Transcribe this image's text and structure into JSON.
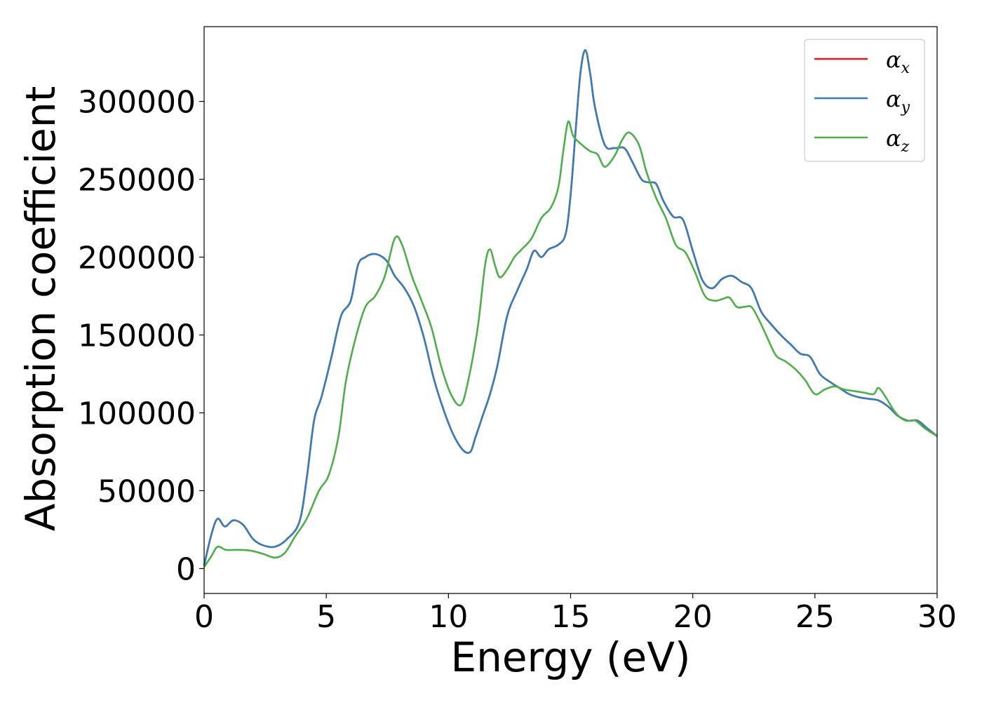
{
  "chart_data": {
    "type": "line",
    "title": "",
    "xlabel": "Energy (eV)",
    "ylabel": "Absorption coefficient",
    "xlim": [
      0,
      30
    ],
    "ylim": [
      -16000,
      348000
    ],
    "xticks": [
      0,
      5,
      10,
      15,
      20,
      25,
      30
    ],
    "xtick_labels": [
      "0",
      "5",
      "10",
      "15",
      "20",
      "25",
      "30"
    ],
    "yticks": [
      0,
      50000,
      100000,
      150000,
      200000,
      250000,
      300000
    ],
    "ytick_labels": [
      "0",
      "50000",
      "100000",
      "150000",
      "200000",
      "250000",
      "300000"
    ],
    "grid": false,
    "legend_position": "top-right",
    "series": [
      {
        "name": "αx",
        "legend_base": "α",
        "legend_sub": "x",
        "color": "#e41a1c",
        "x": [
          0,
          0.3,
          0.55,
          0.85,
          1.2,
          1.6,
          2.0,
          2.4,
          2.9,
          3.4,
          3.9,
          4.2,
          4.5,
          4.8,
          5.2,
          5.6,
          6.0,
          6.3,
          6.6,
          6.9,
          7.2,
          7.5,
          7.8,
          8.2,
          8.6,
          9.0,
          9.4,
          9.8,
          10.2,
          10.6,
          10.9,
          11.1,
          11.4,
          11.7,
          12.0,
          12.4,
          12.8,
          13.2,
          13.5,
          13.8,
          14.1,
          14.5,
          14.8,
          15.0,
          15.2,
          15.4,
          15.6,
          15.8,
          16.0,
          16.4,
          16.8,
          17.2,
          17.5,
          17.9,
          18.2,
          18.5,
          18.8,
          19.2,
          19.6,
          20.0,
          20.4,
          20.8,
          21.2,
          21.6,
          22.0,
          22.4,
          22.8,
          23.2,
          23.6,
          24.0,
          24.4,
          24.8,
          25.2,
          25.6,
          26.0,
          26.4,
          26.8,
          27.2,
          27.6,
          28.0,
          28.4,
          28.8,
          29.2,
          29.6,
          30.0
        ],
        "y": [
          2000,
          22000,
          32000,
          27000,
          31000,
          28000,
          19000,
          15000,
          14000,
          19000,
          30000,
          58000,
          95000,
          110000,
          135000,
          162000,
          172000,
          195000,
          200000,
          202000,
          201000,
          197000,
          188000,
          180000,
          168000,
          148000,
          122000,
          102000,
          86000,
          76000,
          75000,
          84000,
          98000,
          112000,
          130000,
          162000,
          178000,
          192000,
          204000,
          200000,
          205000,
          208000,
          215000,
          240000,
          280000,
          318000,
          333000,
          318000,
          296000,
          272000,
          270000,
          270000,
          262000,
          250000,
          248000,
          247000,
          236000,
          226000,
          224000,
          204000,
          185000,
          180000,
          186000,
          188000,
          184000,
          180000,
          165000,
          157000,
          150000,
          144000,
          138000,
          136000,
          125000,
          120000,
          116000,
          112000,
          110000,
          109000,
          108000,
          104000,
          98000,
          95000,
          95000,
          90000,
          85000
        ]
      },
      {
        "name": "αy",
        "legend_base": "α",
        "legend_sub": "y",
        "color": "#377eb8",
        "x": [
          0,
          0.3,
          0.55,
          0.85,
          1.2,
          1.6,
          2.0,
          2.4,
          2.9,
          3.4,
          3.9,
          4.2,
          4.5,
          4.8,
          5.2,
          5.6,
          6.0,
          6.3,
          6.6,
          6.9,
          7.2,
          7.5,
          7.8,
          8.2,
          8.6,
          9.0,
          9.4,
          9.8,
          10.2,
          10.6,
          10.9,
          11.1,
          11.4,
          11.7,
          12.0,
          12.4,
          12.8,
          13.2,
          13.5,
          13.8,
          14.1,
          14.5,
          14.8,
          15.0,
          15.2,
          15.4,
          15.6,
          15.8,
          16.0,
          16.4,
          16.8,
          17.2,
          17.5,
          17.9,
          18.2,
          18.5,
          18.8,
          19.2,
          19.6,
          20.0,
          20.4,
          20.8,
          21.2,
          21.6,
          22.0,
          22.4,
          22.8,
          23.2,
          23.6,
          24.0,
          24.4,
          24.8,
          25.2,
          25.6,
          26.0,
          26.4,
          26.8,
          27.2,
          27.6,
          28.0,
          28.4,
          28.8,
          29.2,
          29.6,
          30.0
        ],
        "y": [
          2000,
          22000,
          32000,
          27000,
          31000,
          28000,
          19000,
          15000,
          14000,
          19000,
          30000,
          58000,
          95000,
          110000,
          135000,
          162000,
          172000,
          195000,
          200000,
          202000,
          201000,
          197000,
          188000,
          180000,
          168000,
          148000,
          122000,
          102000,
          86000,
          76000,
          75000,
          84000,
          98000,
          112000,
          130000,
          162000,
          178000,
          192000,
          204000,
          200000,
          205000,
          208000,
          215000,
          240000,
          280000,
          318000,
          333000,
          318000,
          296000,
          272000,
          270000,
          270000,
          262000,
          250000,
          248000,
          247000,
          236000,
          226000,
          224000,
          204000,
          185000,
          180000,
          186000,
          188000,
          184000,
          180000,
          165000,
          157000,
          150000,
          144000,
          138000,
          136000,
          125000,
          120000,
          116000,
          112000,
          110000,
          109000,
          108000,
          104000,
          98000,
          95000,
          95000,
          90000,
          85000
        ]
      },
      {
        "name": "αz",
        "legend_base": "α",
        "legend_sub": "z",
        "color": "#4daf4a",
        "x": [
          0,
          0.3,
          0.55,
          0.9,
          1.4,
          1.9,
          2.4,
          2.9,
          3.3,
          3.7,
          4.2,
          4.7,
          5.1,
          5.5,
          5.8,
          6.2,
          6.6,
          7.0,
          7.4,
          7.8,
          8.1,
          8.5,
          8.9,
          9.3,
          9.7,
          10.1,
          10.5,
          10.8,
          11.2,
          11.5,
          11.7,
          11.9,
          12.1,
          12.4,
          12.7,
          13.0,
          13.4,
          13.8,
          14.2,
          14.5,
          14.7,
          14.9,
          15.1,
          15.4,
          15.8,
          16.1,
          16.4,
          16.8,
          17.1,
          17.4,
          17.8,
          18.1,
          18.5,
          18.9,
          19.3,
          19.7,
          20.1,
          20.5,
          20.9,
          21.2,
          21.5,
          21.8,
          22.1,
          22.4,
          22.7,
          23.0,
          23.4,
          23.8,
          24.2,
          24.6,
          25.0,
          25.4,
          25.8,
          26.2,
          26.6,
          27.0,
          27.4,
          27.6,
          27.9,
          28.3,
          28.7,
          29.1,
          29.5,
          30.0
        ],
        "y": [
          1000,
          8000,
          14000,
          12000,
          12000,
          11500,
          9500,
          7000,
          10000,
          20000,
          32000,
          50000,
          60000,
          85000,
          120000,
          148000,
          168000,
          175000,
          188000,
          212000,
          208000,
          188000,
          172000,
          155000,
          130000,
          112000,
          105000,
          120000,
          155000,
          195000,
          205000,
          195000,
          187000,
          192000,
          200000,
          205000,
          212000,
          225000,
          232000,
          245000,
          268000,
          287000,
          278000,
          273000,
          268000,
          266000,
          258000,
          265000,
          275000,
          280000,
          272000,
          255000,
          238000,
          225000,
          208000,
          203000,
          190000,
          175000,
          172000,
          173000,
          174000,
          168000,
          168000,
          168000,
          160000,
          150000,
          137000,
          133000,
          128000,
          121000,
          112000,
          115000,
          117000,
          115000,
          114000,
          113000,
          112000,
          116000,
          110000,
          100000,
          95000,
          95000,
          90000,
          85000
        ]
      }
    ]
  }
}
